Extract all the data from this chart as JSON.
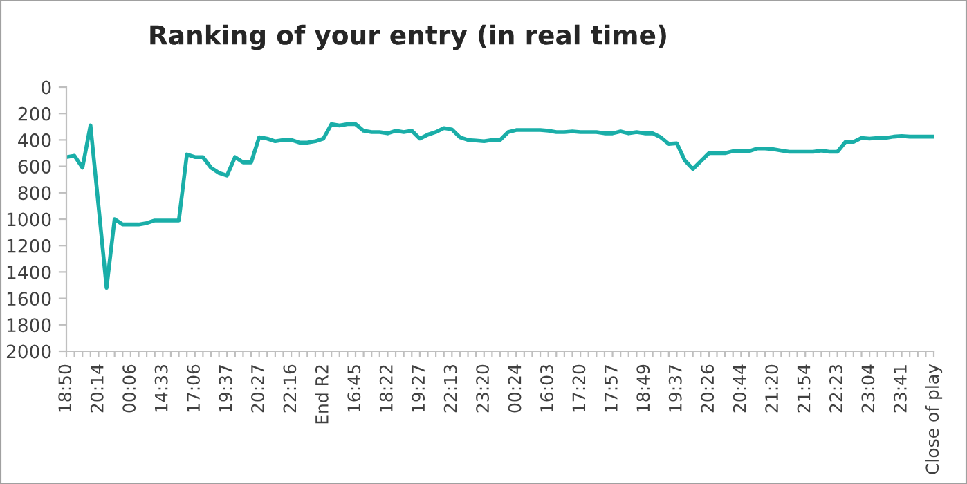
{
  "chart_data": {
    "type": "line",
    "title": "Ranking of your entry (in real time)",
    "categories": [
      "18:50",
      null,
      null,
      null,
      "20:14",
      null,
      null,
      null,
      "00:06",
      null,
      null,
      null,
      "14:33",
      null,
      null,
      null,
      "17:06",
      null,
      null,
      null,
      "19:37",
      null,
      null,
      null,
      "20:27",
      null,
      null,
      null,
      "22:16",
      null,
      null,
      null,
      "End R2",
      null,
      null,
      null,
      "16:45",
      null,
      null,
      null,
      "18:22",
      null,
      null,
      null,
      "19:27",
      null,
      null,
      null,
      "22:13",
      null,
      null,
      null,
      "23:20",
      null,
      null,
      null,
      "00:24",
      null,
      null,
      null,
      "16:03",
      null,
      null,
      null,
      "17:20",
      null,
      null,
      null,
      "17:57",
      null,
      null,
      null,
      "18:49",
      null,
      null,
      null,
      "19:37",
      null,
      null,
      null,
      "20:26",
      null,
      null,
      null,
      "20:44",
      null,
      null,
      null,
      "21:20",
      null,
      null,
      null,
      "21:54",
      null,
      null,
      null,
      "22:23",
      null,
      null,
      null,
      "23:04",
      null,
      null,
      null,
      "23:41",
      null,
      null,
      null,
      "Close of play"
    ],
    "series": [
      {
        "color": "#1aaea8",
        "values": [
          530,
          520,
          610,
          290,
          900,
          1520,
          1000,
          1040,
          1040,
          1040,
          1030,
          1010,
          1010,
          1010,
          1010,
          510,
          530,
          530,
          610,
          650,
          670,
          530,
          570,
          570,
          380,
          390,
          410,
          400,
          400,
          420,
          420,
          410,
          390,
          280,
          290,
          280,
          280,
          330,
          340,
          340,
          350,
          330,
          340,
          330,
          390,
          360,
          340,
          310,
          320,
          380,
          400,
          405,
          410,
          400,
          400,
          340,
          325,
          325,
          325,
          325,
          330,
          340,
          340,
          335,
          340,
          340,
          340,
          350,
          350,
          335,
          350,
          340,
          350,
          350,
          380,
          430,
          425,
          555,
          620,
          560,
          500,
          500,
          500,
          485,
          485,
          485,
          465,
          465,
          470,
          480,
          490,
          490,
          490,
          490,
          480,
          490,
          490,
          415,
          415,
          385,
          390,
          385,
          385,
          375,
          370,
          375,
          375,
          375,
          375
        ]
      }
    ],
    "ylim": [
      2000,
      0
    ],
    "yticks": [
      0,
      200,
      400,
      600,
      800,
      1000,
      1200,
      1400,
      1600,
      1800,
      2000
    ],
    "grid": false,
    "legend": false,
    "marker": "none",
    "line_style": "solid"
  }
}
